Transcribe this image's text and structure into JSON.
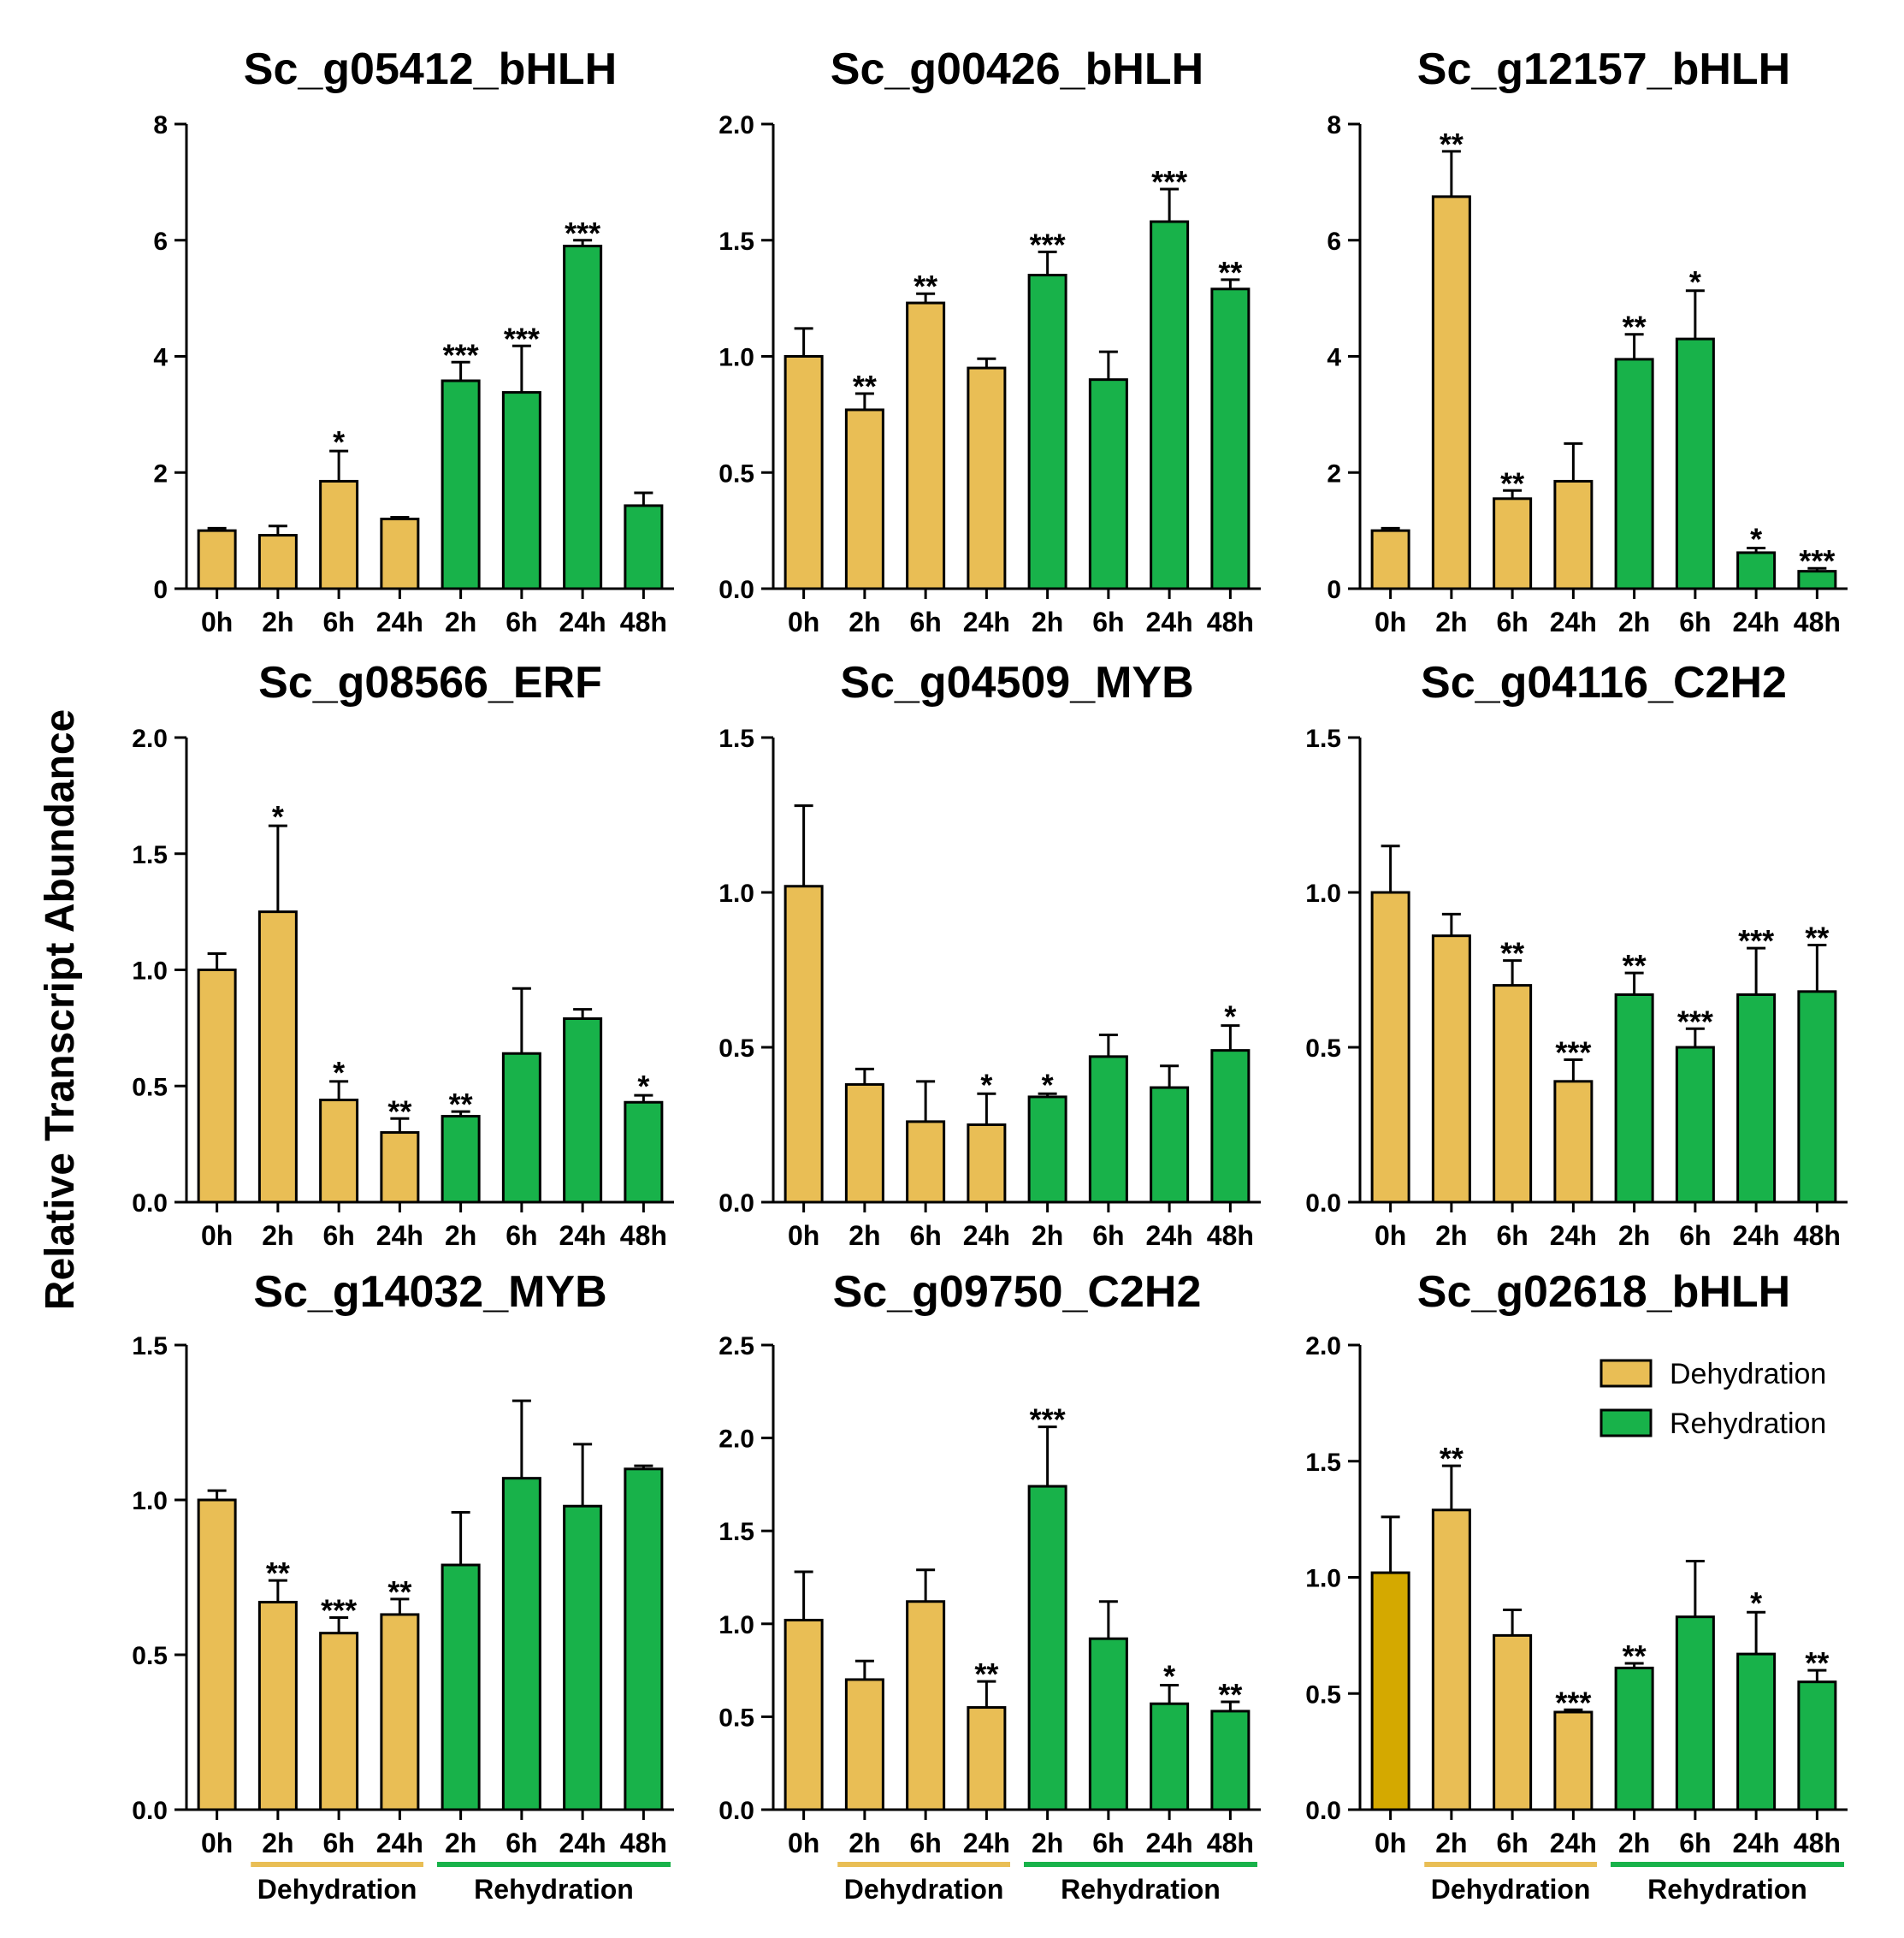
{
  "figure": {
    "ylabel": "Relative Transcript Abundance",
    "legend": [
      {
        "label": "Dehydration",
        "color": "#E9BE55"
      },
      {
        "label": "Rehydration",
        "color": "#18B24A"
      }
    ],
    "groups": {
      "dehydration": "Dehydration",
      "rehydration": "Rehydration"
    },
    "colors": {
      "dehydration": "#E9BE55",
      "rehydration": "#18B24A",
      "control_highlight": "#D4A900",
      "axis": "#000000"
    }
  },
  "chart_data": [
    {
      "type": "bar",
      "title": "Sc_g05412_bHLH",
      "categories": [
        "0h",
        "2h",
        "6h",
        "24h",
        "2h",
        "6h",
        "24h",
        "48h"
      ],
      "groups": [
        "dehydration",
        "dehydration",
        "dehydration",
        "dehydration",
        "rehydration",
        "rehydration",
        "rehydration",
        "rehydration"
      ],
      "values": [
        1.0,
        0.92,
        1.85,
        1.2,
        3.58,
        3.38,
        5.9,
        1.43
      ],
      "errors": [
        0.04,
        0.16,
        0.52,
        0.03,
        0.32,
        0.8,
        0.1,
        0.22
      ],
      "significance": [
        "",
        "",
        "*",
        "",
        "***",
        "***",
        "***",
        ""
      ],
      "yticks": [
        "0",
        "2",
        "4",
        "6",
        "8"
      ],
      "ylim": [
        0,
        8
      ]
    },
    {
      "type": "bar",
      "title": "Sc_g00426_bHLH",
      "categories": [
        "0h",
        "2h",
        "6h",
        "24h",
        "2h",
        "6h",
        "24h",
        "48h"
      ],
      "groups": [
        "dehydration",
        "dehydration",
        "dehydration",
        "dehydration",
        "rehydration",
        "rehydration",
        "rehydration",
        "rehydration"
      ],
      "values": [
        1.0,
        0.77,
        1.23,
        0.95,
        1.35,
        0.9,
        1.58,
        1.29
      ],
      "errors": [
        0.12,
        0.07,
        0.04,
        0.04,
        0.1,
        0.12,
        0.14,
        0.04
      ],
      "significance": [
        "",
        "**",
        "**",
        "",
        "***",
        "",
        "***",
        "**"
      ],
      "yticks": [
        "0.0",
        "0.5",
        "1.0",
        "1.5",
        "2.0"
      ],
      "ylim": [
        0,
        2
      ]
    },
    {
      "type": "bar",
      "title": "Sc_g12157_bHLH",
      "categories": [
        "0h",
        "2h",
        "6h",
        "24h",
        "2h",
        "6h",
        "24h",
        "48h"
      ],
      "groups": [
        "dehydration",
        "dehydration",
        "dehydration",
        "dehydration",
        "rehydration",
        "rehydration",
        "rehydration",
        "rehydration"
      ],
      "values": [
        1.0,
        6.75,
        1.55,
        1.85,
        3.95,
        4.3,
        0.62,
        0.3
      ],
      "errors": [
        0.04,
        0.78,
        0.14,
        0.65,
        0.43,
        0.83,
        0.08,
        0.05
      ],
      "significance": [
        "",
        "**",
        "**",
        "",
        "**",
        "*",
        "*",
        "***"
      ],
      "yticks": [
        "0",
        "2",
        "4",
        "6",
        "8"
      ],
      "ylim": [
        0,
        8
      ]
    },
    {
      "type": "bar",
      "title": "Sc_g08566_ERF",
      "categories": [
        "0h",
        "2h",
        "6h",
        "24h",
        "2h",
        "6h",
        "24h",
        "48h"
      ],
      "groups": [
        "dehydration",
        "dehydration",
        "dehydration",
        "dehydration",
        "rehydration",
        "rehydration",
        "rehydration",
        "rehydration"
      ],
      "values": [
        1.0,
        1.25,
        0.44,
        0.3,
        0.37,
        0.64,
        0.79,
        0.43
      ],
      "errors": [
        0.07,
        0.37,
        0.08,
        0.06,
        0.02,
        0.28,
        0.04,
        0.03
      ],
      "significance": [
        "",
        "*",
        "*",
        "**",
        "**",
        "",
        "",
        "*"
      ],
      "yticks": [
        "0.0",
        "0.5",
        "1.0",
        "1.5",
        "2.0"
      ],
      "ylim": [
        0,
        2
      ]
    },
    {
      "type": "bar",
      "title": "Sc_g04509_MYB",
      "categories": [
        "0h",
        "2h",
        "6h",
        "24h",
        "2h",
        "6h",
        "24h",
        "48h"
      ],
      "groups": [
        "dehydration",
        "dehydration",
        "dehydration",
        "dehydration",
        "rehydration",
        "rehydration",
        "rehydration",
        "rehydration"
      ],
      "values": [
        1.02,
        0.38,
        0.26,
        0.25,
        0.34,
        0.47,
        0.37,
        0.49
      ],
      "errors": [
        0.26,
        0.05,
        0.13,
        0.1,
        0.01,
        0.07,
        0.07,
        0.08
      ],
      "significance": [
        "",
        "",
        "",
        "*",
        "*",
        "",
        "",
        "*"
      ],
      "yticks": [
        "0.0",
        "0.5",
        "1.0",
        "1.5"
      ],
      "ylim": [
        0,
        1.5
      ]
    },
    {
      "type": "bar",
      "title": "Sc_g04116_C2H2",
      "categories": [
        "0h",
        "2h",
        "6h",
        "24h",
        "2h",
        "6h",
        "24h",
        "48h"
      ],
      "groups": [
        "dehydration",
        "dehydration",
        "dehydration",
        "dehydration",
        "rehydration",
        "rehydration",
        "rehydration",
        "rehydration"
      ],
      "values": [
        1.0,
        0.86,
        0.7,
        0.39,
        0.67,
        0.5,
        0.67,
        0.68
      ],
      "errors": [
        0.15,
        0.07,
        0.08,
        0.07,
        0.07,
        0.06,
        0.15,
        0.15
      ],
      "significance": [
        "",
        "",
        "**",
        "***",
        "**",
        "***",
        "***",
        "**"
      ],
      "yticks": [
        "0.0",
        "0.5",
        "1.0",
        "1.5"
      ],
      "ylim": [
        0,
        1.5
      ]
    },
    {
      "type": "bar",
      "title": "Sc_g14032_MYB",
      "categories": [
        "0h",
        "2h",
        "6h",
        "24h",
        "2h",
        "6h",
        "24h",
        "48h"
      ],
      "groups": [
        "dehydration",
        "dehydration",
        "dehydration",
        "dehydration",
        "rehydration",
        "rehydration",
        "rehydration",
        "rehydration"
      ],
      "values": [
        1.0,
        0.67,
        0.57,
        0.63,
        0.79,
        1.07,
        0.98,
        1.1
      ],
      "errors": [
        0.03,
        0.07,
        0.05,
        0.05,
        0.17,
        0.25,
        0.2,
        0.01
      ],
      "significance": [
        "",
        "**",
        "***",
        "**",
        "",
        "",
        "",
        ""
      ],
      "yticks": [
        "0.0",
        "0.5",
        "1.0",
        "1.5"
      ],
      "ylim": [
        0,
        1.5
      ]
    },
    {
      "type": "bar",
      "title": "Sc_g09750_C2H2",
      "categories": [
        "0h",
        "2h",
        "6h",
        "24h",
        "2h",
        "6h",
        "24h",
        "48h"
      ],
      "groups": [
        "dehydration",
        "dehydration",
        "dehydration",
        "dehydration",
        "rehydration",
        "rehydration",
        "rehydration",
        "rehydration"
      ],
      "values": [
        1.02,
        0.7,
        1.12,
        0.55,
        1.74,
        0.92,
        0.57,
        0.53
      ],
      "errors": [
        0.26,
        0.1,
        0.17,
        0.14,
        0.32,
        0.2,
        0.1,
        0.05
      ],
      "significance": [
        "",
        "",
        "",
        "**",
        "***",
        "",
        "*",
        "**"
      ],
      "yticks": [
        "0.0",
        "0.5",
        "1.0",
        "1.5",
        "2.0",
        "2.5"
      ],
      "ylim": [
        0,
        2.5
      ]
    },
    {
      "type": "bar",
      "title": "Sc_g02618_bHLH",
      "categories": [
        "0h",
        "2h",
        "6h",
        "24h",
        "2h",
        "6h",
        "24h",
        "48h"
      ],
      "groups": [
        "control",
        "dehydration",
        "dehydration",
        "dehydration",
        "rehydration",
        "rehydration",
        "rehydration",
        "rehydration"
      ],
      "values": [
        1.02,
        1.29,
        0.75,
        0.42,
        0.61,
        0.83,
        0.67,
        0.55
      ],
      "errors": [
        0.24,
        0.19,
        0.11,
        0.01,
        0.02,
        0.24,
        0.18,
        0.05
      ],
      "significance": [
        "",
        "**",
        "",
        "***",
        "**",
        "",
        "*",
        "**"
      ],
      "yticks": [
        "0.0",
        "0.5",
        "1.0",
        "1.5",
        "2.0"
      ],
      "ylim": [
        0,
        2
      ]
    }
  ]
}
